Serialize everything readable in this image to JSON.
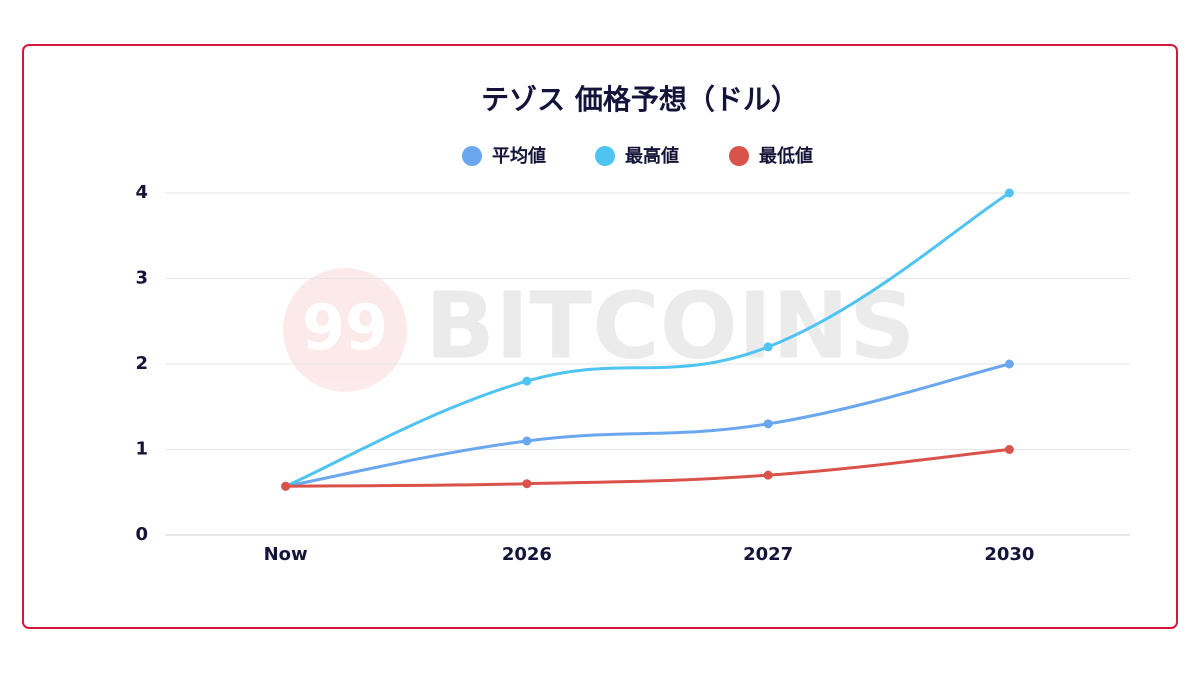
{
  "chart_data": {
    "type": "line",
    "title": "テゾス 価格予想（ドル）",
    "watermark_logo": "99",
    "watermark": "BITCOINS",
    "categories": [
      "Now",
      "2026",
      "2027",
      "2030"
    ],
    "series": [
      {
        "name": "平均値",
        "color": "#6aa7ef",
        "values": [
          0.57,
          1.1,
          1.3,
          2
        ]
      },
      {
        "name": "最高値",
        "color": "#4fc3f2",
        "values": [
          0.57,
          1.8,
          2.2,
          4
        ]
      },
      {
        "name": "最低値",
        "color": "#d9534a",
        "values": [
          0.57,
          0.6,
          0.7,
          1
        ]
      }
    ],
    "ylim": [
      0,
      4
    ],
    "yticks": [
      0,
      1,
      2,
      3,
      4
    ],
    "grid": true
  }
}
